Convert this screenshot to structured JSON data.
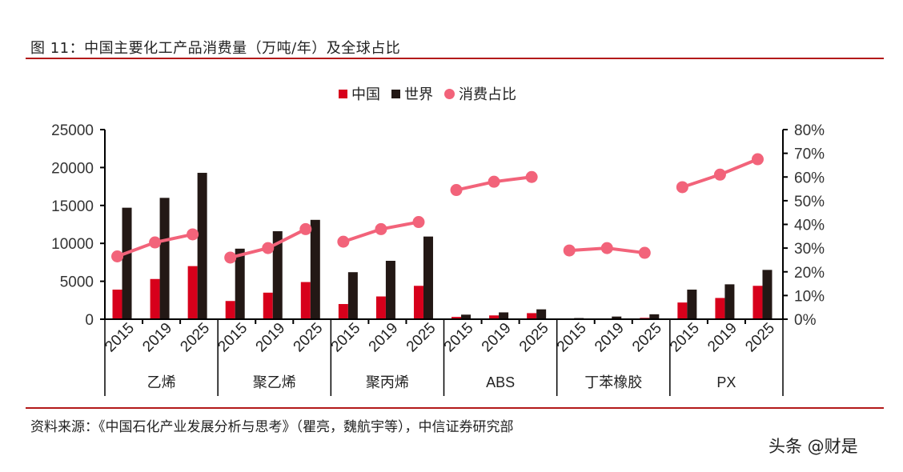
{
  "header": {
    "title": "图 11：中国主要化工产品消费量（万吨/年）及全球占比"
  },
  "legend": {
    "china": "中国",
    "world": "世界",
    "share": "消费占比"
  },
  "colors": {
    "china": "#d7001b",
    "world": "#231815",
    "share": "#f2637a",
    "rule": "#b31a1a"
  },
  "footer": {
    "source": "资料来源：《中国石化产业发展分析与思考》（瞿亮，魏航宇等），中信证券研究部",
    "watermark": "头条 @财是"
  },
  "chart_data": {
    "type": "bar",
    "title": "中国主要化工产品消费量（万吨/年）及全球占比",
    "xlabel": "",
    "ylabel": "万吨/年",
    "y2label": "消费占比",
    "ylim": [
      0,
      25000
    ],
    "y2lim": [
      0,
      0.8
    ],
    "yticks": [
      "0",
      "5000",
      "10000",
      "15000",
      "20000",
      "25000"
    ],
    "y2ticks": [
      "0%",
      "10%",
      "20%",
      "30%",
      "40%",
      "50%",
      "60%",
      "70%",
      "80%"
    ],
    "legend_position": "top",
    "grid": false,
    "groups": [
      "乙烯",
      "聚乙烯",
      "聚丙烯",
      "ABS",
      "丁苯橡胶",
      "PX"
    ],
    "years": [
      "2015",
      "2019",
      "2025"
    ],
    "categories": [
      "乙烯 2015",
      "乙烯 2019",
      "乙烯 2025",
      "聚乙烯 2015",
      "聚乙烯 2019",
      "聚乙烯 2025",
      "聚丙烯 2015",
      "聚丙烯 2019",
      "聚丙烯 2025",
      "ABS 2015",
      "ABS 2019",
      "ABS 2025",
      "丁苯橡胶 2015",
      "丁苯橡胶 2019",
      "丁苯橡胶 2025",
      "PX 2015",
      "PX 2019",
      "PX 2025"
    ],
    "series": [
      {
        "name": "中国",
        "type": "bar",
        "axis": "left",
        "values": [
          3900,
          5300,
          7000,
          2400,
          3500,
          4900,
          2000,
          3000,
          4400,
          300,
          500,
          800,
          50,
          100,
          180,
          2200,
          2800,
          4400
        ]
      },
      {
        "name": "世界",
        "type": "bar",
        "axis": "left",
        "values": [
          14700,
          16000,
          19300,
          9300,
          11600,
          13100,
          6200,
          7700,
          10900,
          600,
          900,
          1300,
          150,
          350,
          650,
          3900,
          4600,
          6500
        ]
      },
      {
        "name": "消费占比",
        "type": "line",
        "axis": "right",
        "values": [
          0.265,
          0.324,
          0.358,
          0.26,
          0.3,
          0.38,
          0.327,
          0.38,
          0.41,
          0.545,
          0.58,
          0.6,
          0.29,
          0.3,
          0.28,
          0.557,
          0.61,
          0.675
        ]
      }
    ]
  }
}
